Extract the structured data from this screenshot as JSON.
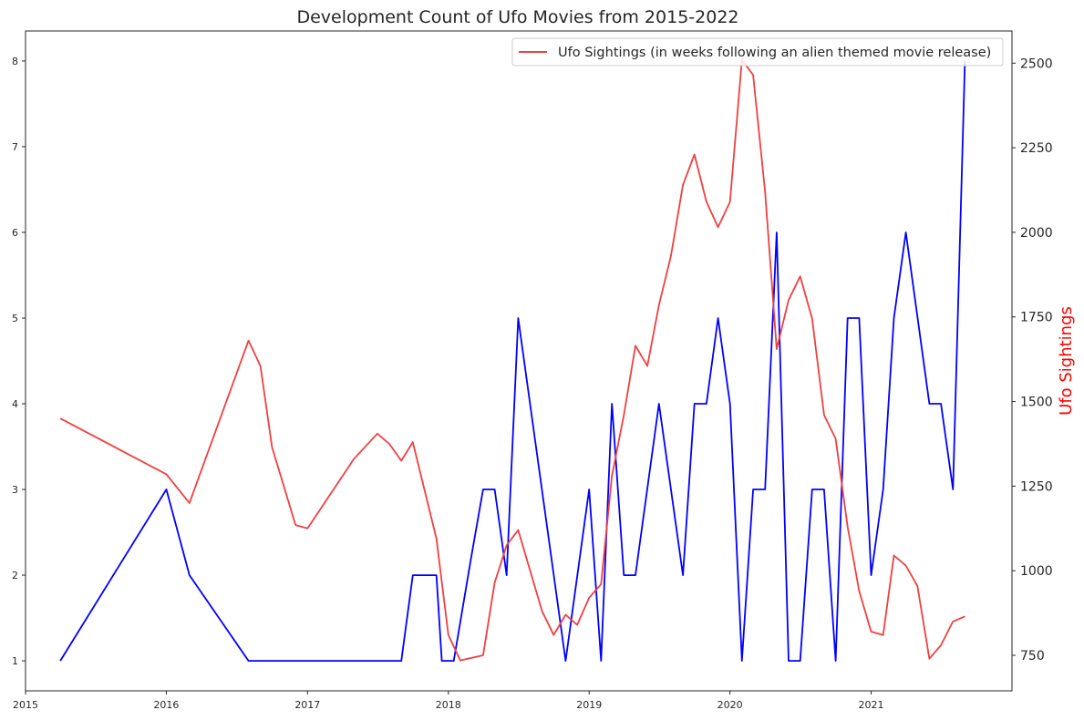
{
  "chart_data": {
    "type": "line",
    "title": "Development Count of Ufo Movies from 2015-2022",
    "xlabel": "",
    "x_ticks": [
      "2015",
      "2016",
      "2017",
      "2018",
      "2019",
      "2020",
      "2021"
    ],
    "xlim": [
      "2015-01-01",
      "2022-01-01"
    ],
    "left_axis": {
      "ylabel": "",
      "ylim": [
        0.65,
        8.35
      ],
      "ticks": [
        "1",
        "2",
        "3",
        "4",
        "5",
        "6",
        "7",
        "8"
      ]
    },
    "right_axis": {
      "ylabel": "Ufo Sightings",
      "label_color": "#ff0000",
      "ylim": [
        645,
        2595
      ],
      "ticks": [
        "750",
        "1000",
        "1250",
        "1500",
        "1750",
        "2000",
        "2250",
        "2500"
      ]
    },
    "series": [
      {
        "axis": "left",
        "color": "#0000ff",
        "points": [
          [
            "2015-04-01",
            1
          ],
          [
            "2016-01-01",
            3
          ],
          [
            "2016-03-01",
            2
          ],
          [
            "2016-08-01",
            1
          ],
          [
            "2016-09-01",
            1
          ],
          [
            "2017-09-01",
            1
          ],
          [
            "2017-10-01",
            2
          ],
          [
            "2017-12-01",
            2
          ],
          [
            "2017-12-15",
            1
          ],
          [
            "2018-01-15",
            1
          ],
          [
            "2018-03-01",
            2.2
          ],
          [
            "2018-04-01",
            3
          ],
          [
            "2018-05-01",
            3
          ],
          [
            "2018-06-01",
            2
          ],
          [
            "2018-07-01",
            5
          ],
          [
            "2018-11-01",
            1
          ],
          [
            "2019-01-01",
            3
          ],
          [
            "2019-02-01",
            1
          ],
          [
            "2019-03-01",
            4
          ],
          [
            "2019-04-01",
            2
          ],
          [
            "2019-05-01",
            2
          ],
          [
            "2019-07-01",
            4
          ],
          [
            "2019-09-01",
            2
          ],
          [
            "2019-10-01",
            4
          ],
          [
            "2019-11-01",
            4
          ],
          [
            "2019-12-01",
            5
          ],
          [
            "2020-01-01",
            4
          ],
          [
            "2020-02-01",
            1
          ],
          [
            "2020-03-01",
            3
          ],
          [
            "2020-04-01",
            3
          ],
          [
            "2020-05-01",
            6
          ],
          [
            "2020-06-01",
            1
          ],
          [
            "2020-07-01",
            1
          ],
          [
            "2020-08-01",
            3
          ],
          [
            "2020-09-01",
            3
          ],
          [
            "2020-10-01",
            1
          ],
          [
            "2020-11-01",
            5
          ],
          [
            "2020-12-01",
            5
          ],
          [
            "2021-01-01",
            2
          ],
          [
            "2021-02-01",
            3
          ],
          [
            "2021-03-01",
            5
          ],
          [
            "2021-04-01",
            6
          ],
          [
            "2021-06-01",
            4
          ],
          [
            "2021-07-01",
            4
          ],
          [
            "2021-08-01",
            3
          ],
          [
            "2021-09-01",
            8
          ]
        ]
      },
      {
        "axis": "right",
        "name": "Ufo Sightings (in weeks following an alien themed movie release)",
        "color": "#f04040",
        "points": [
          [
            "2015-04-01",
            1450
          ],
          [
            "2016-01-01",
            1285
          ],
          [
            "2016-03-01",
            1200
          ],
          [
            "2016-08-01",
            1680
          ],
          [
            "2016-09-01",
            1605
          ],
          [
            "2016-10-01",
            1365
          ],
          [
            "2016-12-01",
            1135
          ],
          [
            "2017-01-01",
            1125
          ],
          [
            "2017-05-01",
            1330
          ],
          [
            "2017-07-01",
            1405
          ],
          [
            "2017-08-01",
            1375
          ],
          [
            "2017-09-01",
            1325
          ],
          [
            "2017-10-01",
            1380
          ],
          [
            "2017-12-01",
            1095
          ],
          [
            "2018-01-01",
            810
          ],
          [
            "2018-02-01",
            735
          ],
          [
            "2018-04-01",
            750
          ],
          [
            "2018-05-01",
            965
          ],
          [
            "2018-06-01",
            1075
          ],
          [
            "2018-07-01",
            1120
          ],
          [
            "2018-09-01",
            880
          ],
          [
            "2018-10-01",
            810
          ],
          [
            "2018-11-01",
            870
          ],
          [
            "2018-12-01",
            840
          ],
          [
            "2019-01-01",
            920
          ],
          [
            "2019-02-01",
            960
          ],
          [
            "2019-03-01",
            1280
          ],
          [
            "2019-04-01",
            1460
          ],
          [
            "2019-05-01",
            1665
          ],
          [
            "2019-06-01",
            1605
          ],
          [
            "2019-07-01",
            1785
          ],
          [
            "2019-08-01",
            1930
          ],
          [
            "2019-09-01",
            2140
          ],
          [
            "2019-10-01",
            2230
          ],
          [
            "2019-11-01",
            2090
          ],
          [
            "2019-12-01",
            2015
          ],
          [
            "2020-01-01",
            2090
          ],
          [
            "2020-02-01",
            2510
          ],
          [
            "2020-03-01",
            2465
          ],
          [
            "2020-04-01",
            2120
          ],
          [
            "2020-05-01",
            1655
          ],
          [
            "2020-06-01",
            1800
          ],
          [
            "2020-07-01",
            1870
          ],
          [
            "2020-08-01",
            1745
          ],
          [
            "2020-09-01",
            1460
          ],
          [
            "2020-10-01",
            1390
          ],
          [
            "2020-11-01",
            1130
          ],
          [
            "2020-12-01",
            940
          ],
          [
            "2021-01-01",
            820
          ],
          [
            "2021-02-01",
            810
          ],
          [
            "2021-03-01",
            1045
          ],
          [
            "2021-04-01",
            1015
          ],
          [
            "2021-05-01",
            955
          ],
          [
            "2021-06-01",
            740
          ],
          [
            "2021-07-01",
            780
          ],
          [
            "2021-08-01",
            850
          ],
          [
            "2021-09-01",
            865
          ]
        ]
      }
    ],
    "legend": {
      "placement": "top-right",
      "entries": [
        "Ufo Sightings (in weeks following an alien themed movie release)"
      ]
    },
    "grid": false
  }
}
